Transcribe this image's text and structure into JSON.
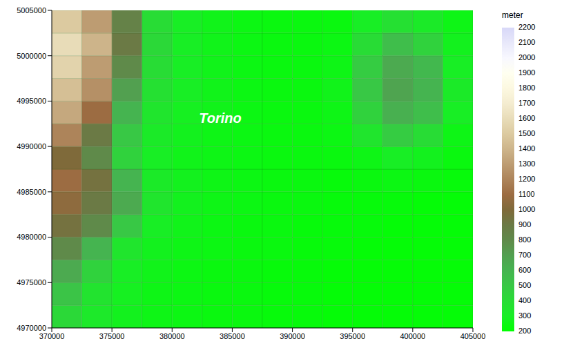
{
  "chart_data": {
    "type": "heatmap",
    "xlim": [
      370000,
      405000
    ],
    "ylim": [
      4970000,
      5005000
    ],
    "xticks": [
      370000,
      375000,
      380000,
      385000,
      390000,
      395000,
      400000,
      405000
    ],
    "yticks": [
      4970000,
      4975000,
      4980000,
      4985000,
      4990000,
      4995000,
      5000000,
      5005000
    ],
    "grid": false,
    "cells": {
      "x_edges": [
        370000,
        372500,
        375000,
        377500,
        380000,
        382500,
        385000,
        387500,
        390000,
        392500,
        395000,
        397500,
        400000,
        402500,
        405000
      ],
      "y_edges": [
        4970000,
        4972500,
        4975000,
        4977500,
        4980000,
        4982500,
        4985000,
        4987500,
        4990000,
        4992500,
        4995000,
        4997500,
        5000000,
        5002500,
        5005000
      ],
      "z": [
        [
          420,
          330,
          280,
          260,
          250,
          240,
          240,
          230,
          230,
          220,
          220,
          220,
          220,
          220
        ],
        [
          520,
          360,
          290,
          260,
          250,
          240,
          240,
          230,
          230,
          220,
          220,
          220,
          220,
          220
        ],
        [
          650,
          450,
          300,
          270,
          250,
          240,
          240,
          230,
          230,
          220,
          220,
          220,
          220,
          220
        ],
        [
          800,
          600,
          350,
          280,
          260,
          250,
          240,
          240,
          230,
          230,
          220,
          220,
          220,
          220
        ],
        [
          950,
          800,
          500,
          300,
          270,
          250,
          240,
          240,
          230,
          230,
          230,
          220,
          220,
          220
        ],
        [
          1050,
          900,
          650,
          350,
          280,
          260,
          250,
          240,
          240,
          230,
          230,
          230,
          220,
          220
        ],
        [
          1100,
          950,
          600,
          320,
          280,
          260,
          250,
          240,
          240,
          230,
          240,
          250,
          240,
          230
        ],
        [
          1000,
          800,
          450,
          300,
          270,
          260,
          250,
          240,
          240,
          240,
          260,
          300,
          280,
          240
        ],
        [
          1200,
          900,
          500,
          320,
          280,
          260,
          250,
          240,
          240,
          250,
          350,
          480,
          400,
          260
        ],
        [
          1350,
          1100,
          600,
          350,
          290,
          270,
          250,
          240,
          240,
          260,
          450,
          620,
          550,
          300
        ],
        [
          1450,
          1250,
          700,
          380,
          300,
          270,
          250,
          240,
          240,
          270,
          500,
          680,
          600,
          320
        ],
        [
          1550,
          1300,
          800,
          400,
          300,
          270,
          250,
          240,
          240,
          260,
          480,
          650,
          580,
          300
        ],
        [
          1600,
          1400,
          900,
          420,
          300,
          270,
          250,
          240,
          240,
          250,
          400,
          550,
          450,
          280
        ],
        [
          1500,
          1300,
          850,
          400,
          300,
          270,
          250,
          240,
          240,
          240,
          300,
          380,
          320,
          260
        ]
      ]
    },
    "colorbar": {
      "label": "meter",
      "range": [
        200,
        2200
      ],
      "ticks": [
        200,
        300,
        400,
        500,
        600,
        700,
        800,
        900,
        1000,
        1100,
        1200,
        1300,
        1400,
        1500,
        1600,
        1700,
        1800,
        1900,
        2000,
        2100,
        2200
      ]
    },
    "annotations": [
      {
        "text": "Torino",
        "x": 384000,
        "y": 4993000
      }
    ]
  }
}
